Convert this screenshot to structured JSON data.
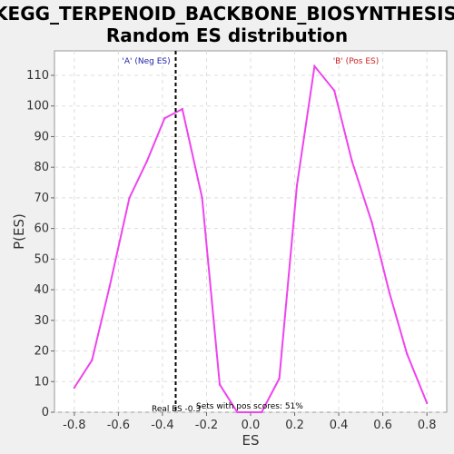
{
  "chart_data": {
    "type": "line",
    "title": [
      "KEGG_TERPENOID_BACKBONE_BIOSYNTHESIS:",
      "Random ES distribution"
    ],
    "xlabel": "ES",
    "ylabel": "P(ES)",
    "xlim": [
      -0.89,
      0.89
    ],
    "ylim": [
      0,
      118
    ],
    "xticks": [
      "-0.8",
      "-0.6",
      "-0.4",
      "-0.2",
      "0.0",
      "0.2",
      "0.4",
      "0.6",
      "0.8"
    ],
    "xtick_values": [
      -0.8,
      -0.6,
      -0.4,
      -0.2,
      0.0,
      0.2,
      0.4,
      0.6,
      0.8
    ],
    "yticks": [
      "0",
      "10",
      "20",
      "30",
      "40",
      "50",
      "60",
      "70",
      "80",
      "90",
      "100",
      "110"
    ],
    "ytick_values": [
      0,
      10,
      20,
      30,
      40,
      50,
      60,
      70,
      80,
      90,
      100,
      110
    ],
    "grid": true,
    "series": [
      {
        "color": "#ee44ee",
        "x": [
          -0.8,
          -0.72,
          -0.64,
          -0.55,
          -0.47,
          -0.39,
          -0.31,
          -0.22,
          -0.14,
          -0.06,
          0.05,
          0.13,
          0.21,
          0.29,
          0.38,
          0.46,
          0.55,
          0.63,
          0.71,
          0.8
        ],
        "y": [
          8,
          17,
          41,
          70,
          82,
          96,
          99,
          70,
          9,
          0,
          0,
          11,
          74,
          113,
          105,
          82,
          62,
          39,
          19,
          3
        ]
      }
    ],
    "marker": {
      "x": -0.34,
      "color": "#000000",
      "style": "dashed"
    },
    "annotations": {
      "neg_label": "'A' (Neg ES)",
      "neg_color": "#2222aa",
      "pos_label": "'B' (Pos ES)",
      "pos_color": "#cc2222",
      "real_es": "Real ES -0.3",
      "pos_scores": "Sets with pos scores: 51%"
    }
  }
}
